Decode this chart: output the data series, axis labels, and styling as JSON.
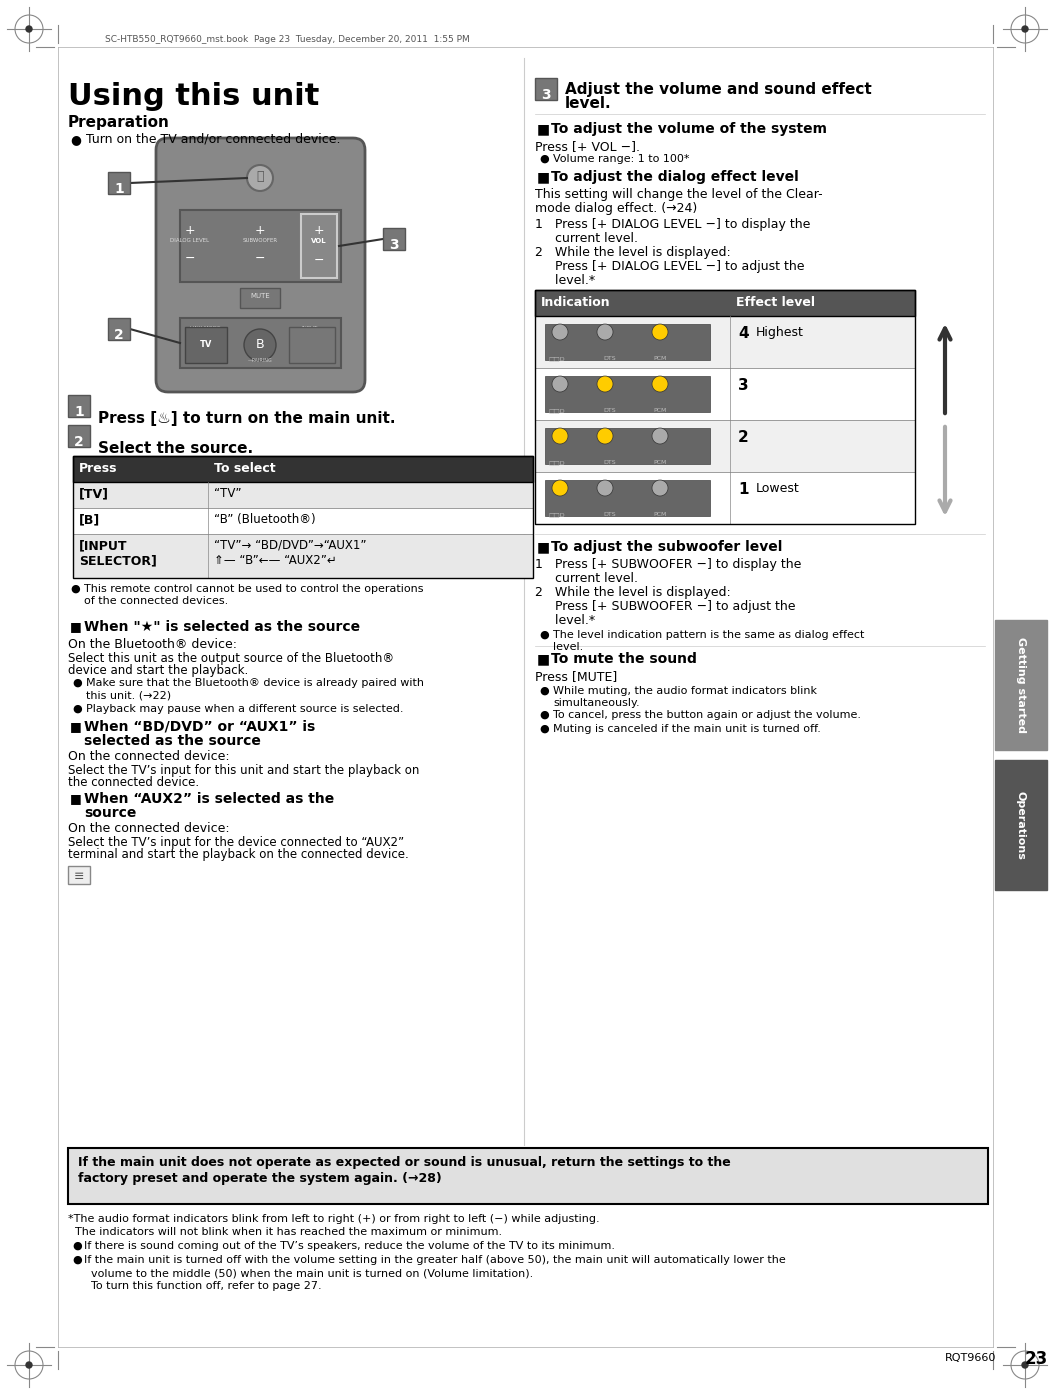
{
  "page_bg": "#ffffff",
  "tab1_color": "#808080",
  "tab2_color": "#606060",
  "tab_text_color": "#ffffff",
  "step_box_bg": "#808080",
  "step_box_text": "#ffffff",
  "arrow_color_up": "#333333",
  "arrow_color_down": "#aaaaaa",
  "border_color": "#000000",
  "main_text_color": "#000000",
  "table_header_bg": "#555555",
  "table_header_text": "#ffffff",
  "page_number": "23",
  "rqt_number": "RQT9660",
  "top_header_text": "SC-HTB550_RQT9660_mst.book  Page 23  Tuesday, December 20, 2011  1:55 PM",
  "right_tab1_text": "Getting started",
  "right_tab2_text": "Operations",
  "title": "Using this unit",
  "subtitle": "Preparation",
  "prep_bullet": "Turn on the TV and/or connected device.",
  "step1_text": "Press [♨] to turn on the main unit.",
  "step2_text": "Select the source.",
  "step3_line1": "Adjust the volume and sound effect",
  "step3_line2": "level.",
  "table_header_press": "Press",
  "table_header_select": "To select",
  "vol_header": "To adjust the volume of the system",
  "vol_press": "Press [+ VOL −].",
  "vol_bullet": "Volume range: 1 to 100*",
  "dialog_header": "To adjust the dialog effect level",
  "dialog_intro1": "This setting will change the level of the Clear-",
  "dialog_intro2": "mode dialog effect. (→24)",
  "dialog_1": "1   Press [+ DIALOG LEVEL −] to display the",
  "dialog_1b": "     current level.",
  "dialog_2": "2   While the level is displayed:",
  "dialog_2b": "     Press [+ DIALOG LEVEL −] to adjust the",
  "dialog_2c": "     level.*",
  "effect_col1": "Indication",
  "effect_col2": "Effect level",
  "effect_rows": [
    [
      "4",
      "Highest"
    ],
    [
      "3",
      ""
    ],
    [
      "2",
      ""
    ],
    [
      "1",
      "Lowest"
    ]
  ],
  "subwoofer_header": "To adjust the subwoofer level",
  "sub_1": "1   Press [+ SUBWOOFER −] to display the",
  "sub_1b": "     current level.",
  "sub_2": "2   While the level is displayed:",
  "sub_2b": "     Press [+ SUBWOOFER −] to adjust the",
  "sub_2c": "     level.*",
  "sub_bullet": "The level indication pattern is the same as dialog effect\nlevel.",
  "mute_header": "To mute the sound",
  "mute_press": "Press [MUTE]",
  "mute_b1": "While muting, the audio format indicators blink\nsimultaneously.",
  "mute_b2": "To cancel, press the button again or adjust the volume.",
  "mute_b3": "Muting is canceled if the main unit is turned off.",
  "note1": "This remote control cannot be used to control the operations\nof the connected devices.",
  "bt_header": "When \"★\" is selected as the source",
  "bt_sub": "On the Bluetooth® device:",
  "bt_text1": "Select this unit as the output source of the Bluetooth®",
  "bt_text2": "device and start the playback.",
  "bt_b1a": "Make sure that the Bluetooth® device is already paired with",
  "bt_b1b": "this unit. (→22)",
  "bt_b2": "Playback may pause when a different source is selected.",
  "bddvd_header": "When “BD/DVD” or “AUX1” is",
  "bddvd_header2": "selected as the source",
  "bddvd_sub": "On the connected device:",
  "bddvd_text1": "Select the TV’s input for this unit and start the playback on",
  "bddvd_text2": "the connected device.",
  "aux2_header": "When “AUX2” is selected as the",
  "aux2_header2": "source",
  "aux2_sub": "On the connected device:",
  "aux2_text1": "Select the TV’s input for the device connected to “AUX2”",
  "aux2_text2": "terminal and start the playback on the connected device.",
  "note_box_text1": "If the main unit does not operate as expected or sound is unusual, return the settings to the",
  "note_box_text2": "factory preset and operate the system again. (→28)",
  "fn1a": "*The audio format indicators blink from left to right (+) or from right to left (−) while adjusting.",
  "fn1b": "  The indicators will not blink when it has reached the maximum or minimum.",
  "fn2": "If there is sound coming out of the TV’s speakers, reduce the volume of the TV to its minimum.",
  "fn3a": "If the main unit is turned off with the volume setting in the greater half (above 50), the main unit will automatically lower the",
  "fn3b": "  volume to the middle (50) when the main unit is turned on (Volume limitation).",
  "fn3c": "  To turn this function off, refer to page 27."
}
